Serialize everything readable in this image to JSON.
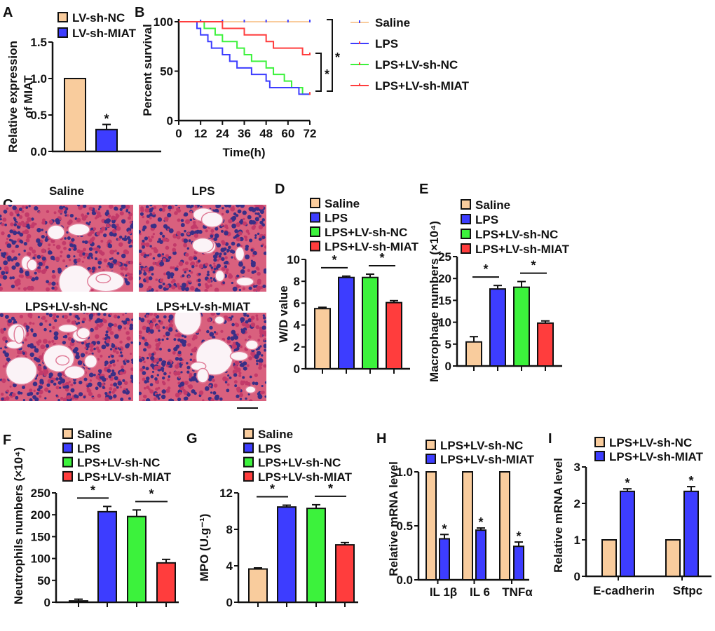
{
  "panel_labels": [
    "A",
    "B",
    "C",
    "D",
    "E",
    "F",
    "G",
    "H",
    "I"
  ],
  "colors": {
    "saline": "#F9CC9D",
    "lps": "#3D3DFF",
    "nc": "#3CF23C",
    "miat": "#FF3D3D",
    "axis": "#111111"
  },
  "histology": {
    "labels": [
      "Saline",
      "LPS",
      "LPS+LV-sh-NC",
      "LPS+LV-sh-MIAT"
    ]
  },
  "chart_data": [
    {
      "id": "A",
      "type": "bar",
      "ylabel": [
        "Relative expression",
        "of MIAT"
      ],
      "ylim": [
        0,
        1.5
      ],
      "yticks": [
        0,
        0.5,
        1.0,
        1.5
      ],
      "ytick_labels": [
        "0.0",
        "0.5",
        "1.0",
        "1.5"
      ],
      "legend": [
        "LV-sh-NC",
        "LV-sh-MIAT"
      ],
      "legend_placement": "top",
      "categories": [
        "LV-sh-NC",
        "LV-sh-MIAT"
      ],
      "values": [
        1.0,
        0.3
      ],
      "errors": [
        0,
        0.07
      ],
      "significance": [
        {
          "bar": 1,
          "label": "*"
        }
      ]
    },
    {
      "id": "B",
      "type": "line",
      "xlabel": "Time(h)",
      "ylabel": "Percent survival",
      "xlim": [
        0,
        72
      ],
      "ylim": [
        0,
        100
      ],
      "xticks": [
        0,
        12,
        24,
        36,
        48,
        60,
        72
      ],
      "xtick_labels": [
        "0",
        "12",
        "24",
        "36",
        "48",
        "60",
        "72"
      ],
      "yticks": [
        0,
        50,
        100
      ],
      "ytick_labels": [
        "0",
        "50",
        "100"
      ],
      "legend_placement": "right",
      "series": [
        {
          "name": "Saline",
          "steps": [
            [
              0,
              100
            ],
            [
              72,
              100
            ]
          ],
          "censor": [
            12,
            24,
            36,
            48,
            60,
            72
          ]
        },
        {
          "name": "LPS",
          "steps": [
            [
              0,
              100
            ],
            [
              10,
              93.3
            ],
            [
              12,
              86.7
            ],
            [
              16,
              80
            ],
            [
              18,
              73.3
            ],
            [
              24,
              66.7
            ],
            [
              28,
              60
            ],
            [
              32,
              53.3
            ],
            [
              40,
              46.7
            ],
            [
              48,
              40
            ],
            [
              50,
              33.3
            ],
            [
              66,
              26.7
            ],
            [
              72,
              26.7
            ]
          ],
          "censor": [
            72
          ]
        },
        {
          "name": "LPS+LV-sh-NC",
          "steps": [
            [
              0,
              100
            ],
            [
              14,
              93.3
            ],
            [
              20,
              86.7
            ],
            [
              24,
              80
            ],
            [
              32,
              73.3
            ],
            [
              36,
              66.7
            ],
            [
              40,
              60
            ],
            [
              48,
              53.3
            ],
            [
              52,
              46.7
            ],
            [
              58,
              40
            ],
            [
              62,
              33.3
            ],
            [
              68,
              26.7
            ],
            [
              72,
              26.7
            ]
          ],
          "censor": [
            72
          ]
        },
        {
          "name": "LPS+LV-sh-MIAT",
          "steps": [
            [
              0,
              100
            ],
            [
              24,
              93.3
            ],
            [
              36,
              86.7
            ],
            [
              48,
              80
            ],
            [
              52,
              73.3
            ],
            [
              68,
              66.7
            ],
            [
              72,
              66.7
            ]
          ],
          "censor": [
            72
          ]
        }
      ],
      "significance": [
        {
          "compare": "LPS+LV-sh-NC vs LPS+LV-sh-MIAT",
          "label": "*"
        },
        {
          "compare": "Saline vs LPS",
          "label": "*"
        }
      ]
    },
    {
      "id": "D",
      "type": "bar",
      "ylabel": "W/D value",
      "ylim": [
        0,
        10
      ],
      "yticks": [
        0,
        2,
        4,
        6,
        8,
        10
      ],
      "ytick_labels": [
        "0",
        "2",
        "4",
        "6",
        "8",
        "10"
      ],
      "legend": [
        "Saline",
        "LPS",
        "LPS+LV-sh-NC",
        "LPS+LV-sh-MIAT"
      ],
      "legend_placement": "top",
      "values": [
        5.5,
        8.35,
        8.35,
        6.05
      ],
      "errors": [
        0.12,
        0.12,
        0.3,
        0.18
      ],
      "significance": [
        {
          "from": 0,
          "to": 1,
          "label": "*"
        },
        {
          "from": 2,
          "to": 3,
          "label": "*"
        }
      ]
    },
    {
      "id": "E",
      "type": "bar",
      "ylabel": "Macrophage numbers (×10⁴)",
      "ylim": [
        0,
        25
      ],
      "yticks": [
        0,
        5,
        10,
        15,
        20,
        25
      ],
      "ytick_labels": [
        "0",
        "5",
        "10",
        "15",
        "20",
        "25"
      ],
      "legend": [
        "Saline",
        "LPS",
        "LPS+LV-sh-NC",
        "LPS+LV-sh-MIAT"
      ],
      "legend_placement": "top",
      "values": [
        5.5,
        17.6,
        18.0,
        9.8
      ],
      "errors": [
        1.2,
        0.8,
        1.3,
        0.5
      ],
      "significance": [
        {
          "from": 0,
          "to": 1,
          "label": "*"
        },
        {
          "from": 2,
          "to": 3,
          "label": "*"
        }
      ]
    },
    {
      "id": "F",
      "type": "bar",
      "ylabel": "Neutrophils numbers (×10⁴)",
      "ylim": [
        0,
        250
      ],
      "yticks": [
        0,
        50,
        100,
        150,
        200,
        250
      ],
      "ytick_labels": [
        "0",
        "50",
        "100",
        "150",
        "200",
        "250"
      ],
      "legend": [
        "Saline",
        "LPS",
        "LPS+LV-sh-NC",
        "LPS+LV-sh-MIAT"
      ],
      "legend_placement": "top",
      "values": [
        3,
        207,
        196,
        90
      ],
      "errors": [
        4,
        12,
        15,
        8
      ],
      "significance": [
        {
          "from": 0,
          "to": 1,
          "label": "*"
        },
        {
          "from": 2,
          "to": 3,
          "label": "*"
        }
      ]
    },
    {
      "id": "G",
      "type": "bar",
      "ylabel": "MPO (U.g⁻¹)",
      "ylim": [
        0,
        12
      ],
      "yticks": [
        0,
        4,
        8,
        12
      ],
      "ytick_labels": [
        "0",
        "4",
        "8",
        "12"
      ],
      "legend": [
        "Saline",
        "LPS",
        "LPS+LV-sh-NC",
        "LPS+LV-sh-MIAT"
      ],
      "legend_placement": "top",
      "values": [
        3.65,
        10.45,
        10.3,
        6.3
      ],
      "errors": [
        0.12,
        0.2,
        0.4,
        0.25
      ],
      "significance": [
        {
          "from": 0,
          "to": 1,
          "label": "*"
        },
        {
          "from": 2,
          "to": 3,
          "label": "*"
        }
      ]
    },
    {
      "id": "H",
      "type": "bar",
      "ylabel": "Relative mRNA level",
      "ylim": [
        0,
        1.0
      ],
      "yticks": [
        0,
        0.5,
        1.0
      ],
      "ytick_labels": [
        "0.0",
        "0.5",
        "1.0"
      ],
      "legend": [
        "LPS+LV-sh-NC",
        "LPS+LV-sh-MIAT"
      ],
      "legend_placement": "top",
      "categories": [
        "IL 1β",
        "IL 6",
        "TNFα"
      ],
      "series": [
        {
          "name": "LPS+LV-sh-NC",
          "values": [
            1,
            1,
            1
          ],
          "errors": [
            0,
            0,
            0
          ]
        },
        {
          "name": "LPS+LV-sh-MIAT",
          "values": [
            0.38,
            0.46,
            0.31
          ],
          "errors": [
            0.04,
            0.02,
            0.04
          ],
          "stars": [
            "*",
            "*",
            "*"
          ]
        }
      ]
    },
    {
      "id": "I",
      "type": "bar",
      "ylabel": "Relative mRNA level",
      "ylim": [
        0,
        3
      ],
      "yticks": [
        0,
        1,
        2,
        3
      ],
      "ytick_labels": [
        "0",
        "1",
        "2",
        "3"
      ],
      "legend": [
        "LPS+LV-sh-NC",
        "LPS+LV-sh-MIAT"
      ],
      "legend_placement": "top",
      "categories": [
        "E-cadherin",
        "Sftpc"
      ],
      "series": [
        {
          "name": "LPS+LV-sh-NC",
          "values": [
            1,
            1
          ],
          "errors": [
            0,
            0
          ]
        },
        {
          "name": "LPS+LV-sh-MIAT",
          "values": [
            2.33,
            2.33
          ],
          "errors": [
            0.07,
            0.13
          ],
          "stars": [
            "*",
            "*"
          ]
        }
      ]
    }
  ]
}
